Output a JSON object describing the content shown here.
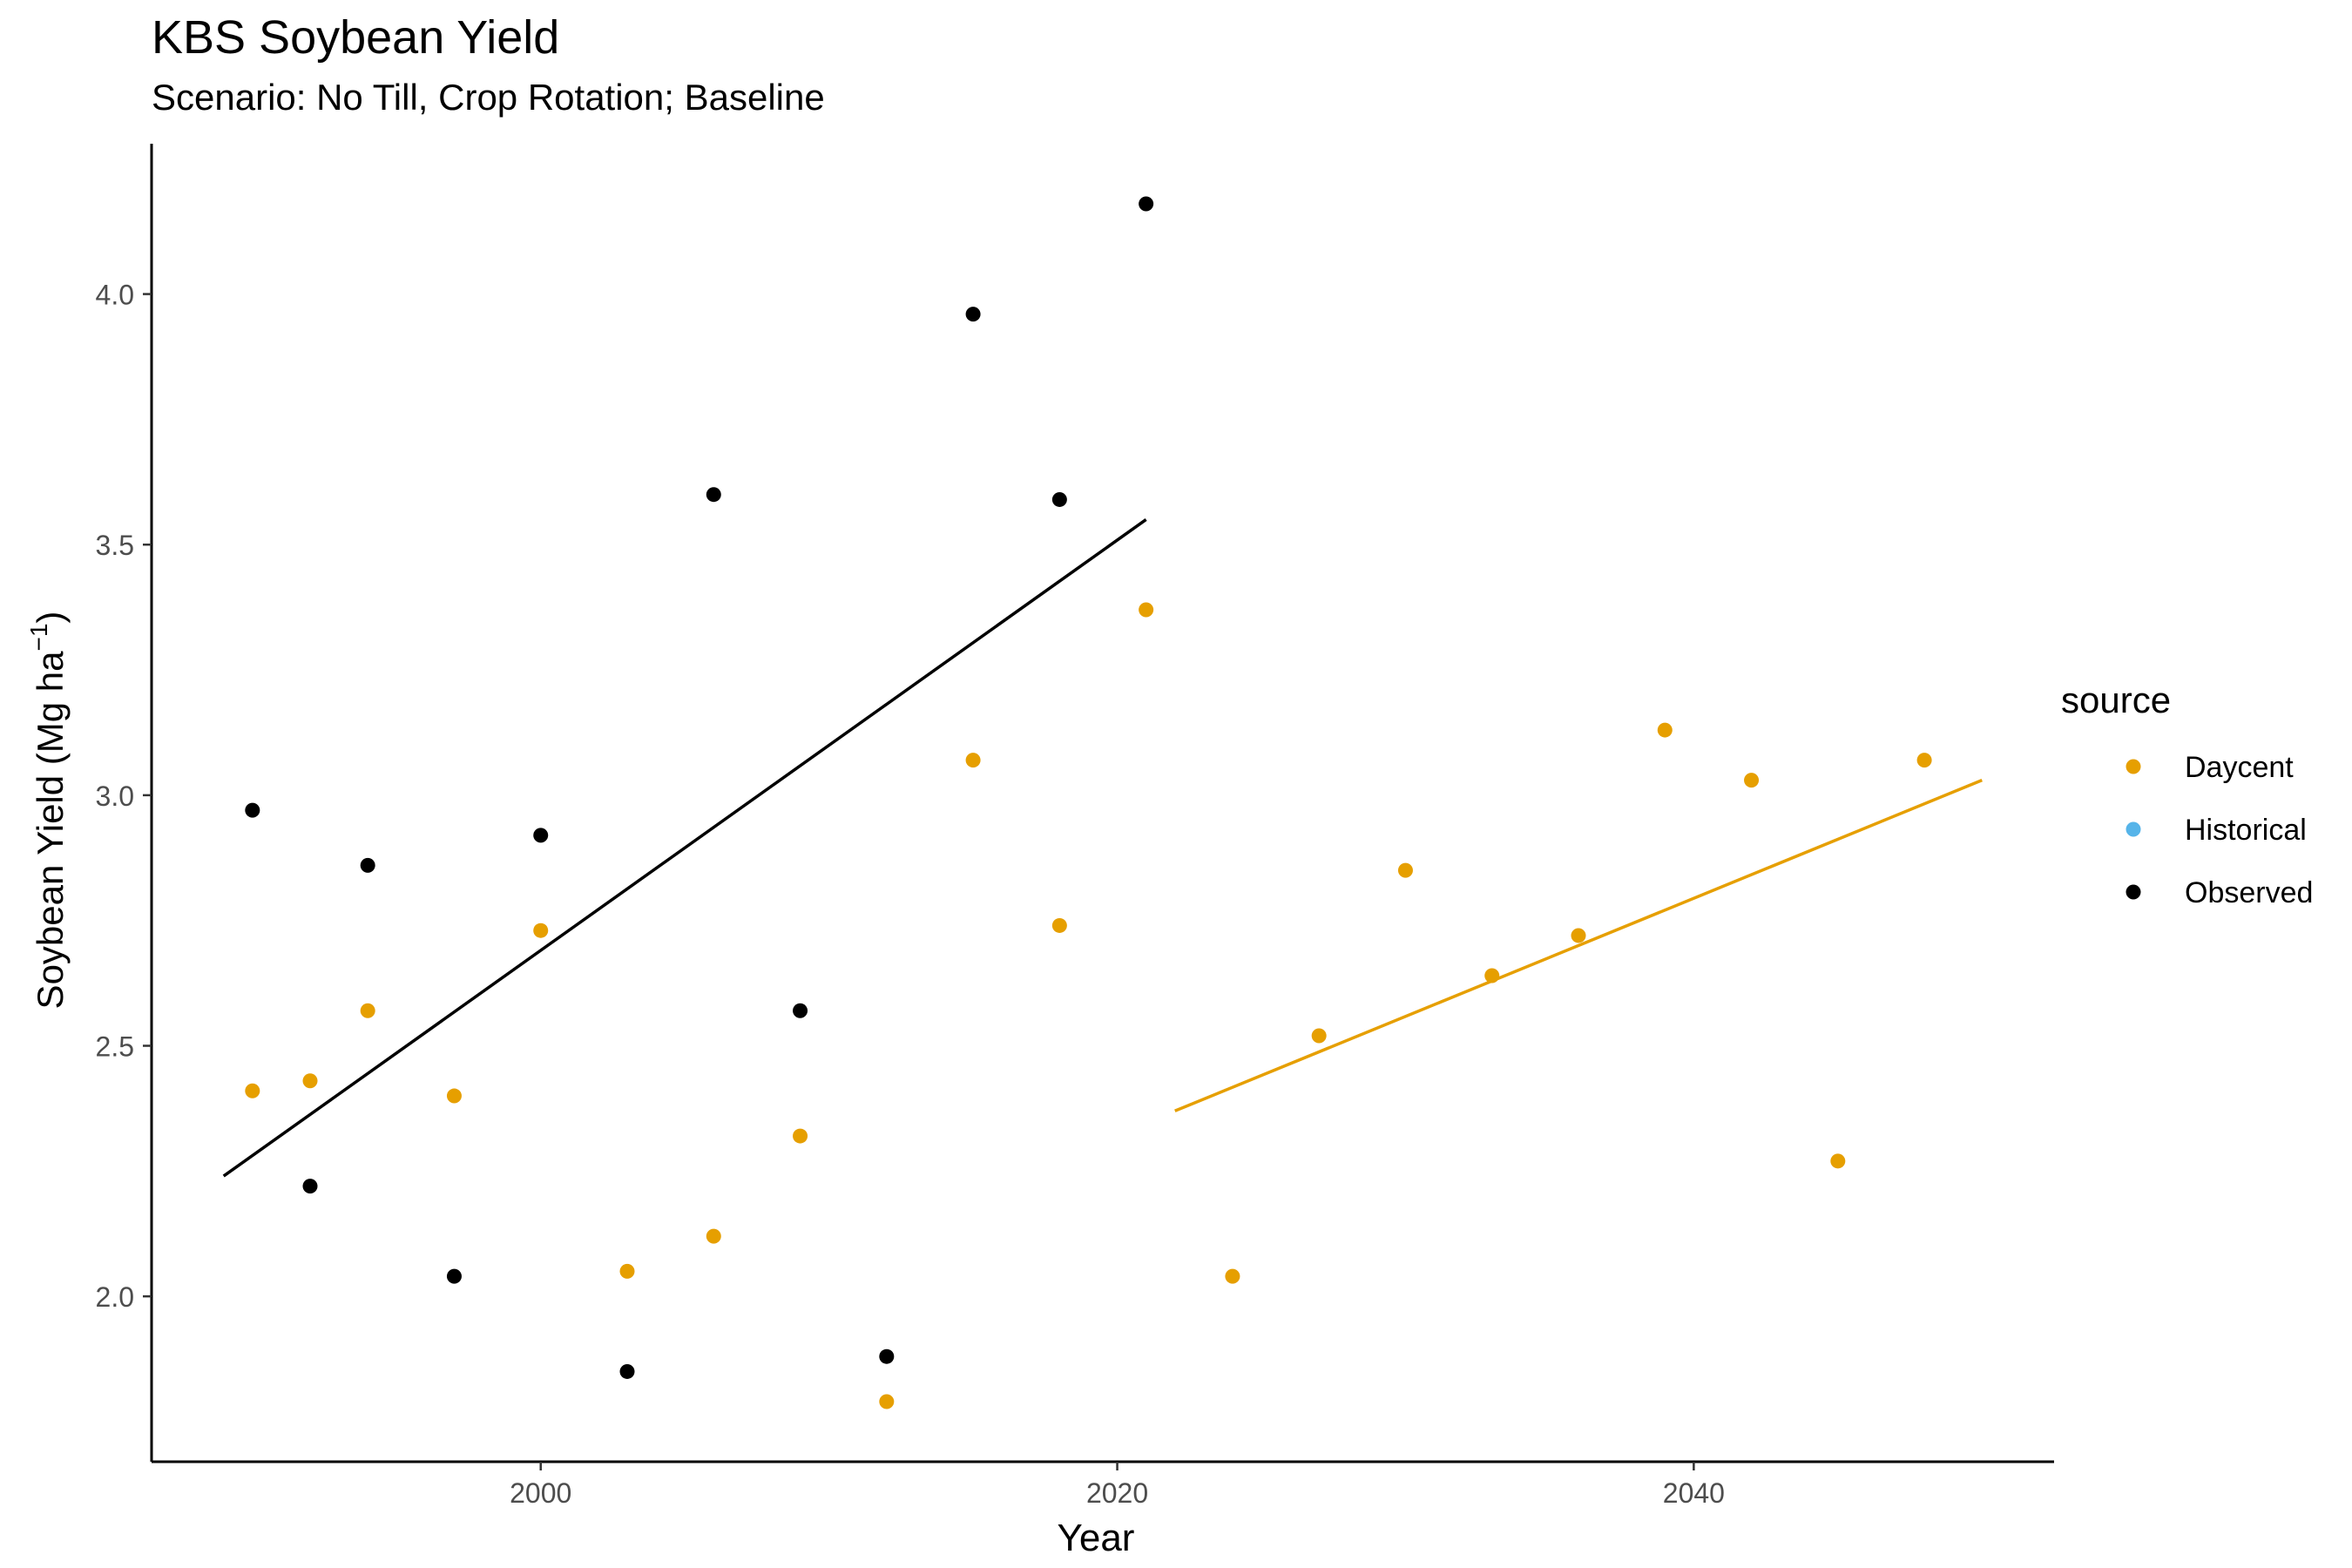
{
  "chart_data": {
    "type": "scatter",
    "title": "KBS Soybean Yield",
    "subtitle": "Scenario: No Till, Crop Rotation; Baseline",
    "xlabel": "Year",
    "ylabel_main": "Soybean Yield (Mg ha",
    "ylabel_sup": "−1",
    "ylabel_close": ")",
    "xlim": [
      1986.5,
      2052.5
    ],
    "ylim": [
      1.67,
      4.3
    ],
    "x_ticks": [
      2000,
      2020,
      2040
    ],
    "x_tick_labels": [
      "2000",
      "2020",
      "2040"
    ],
    "y_ticks": [
      2.0,
      2.5,
      3.0,
      3.5,
      4.0
    ],
    "y_tick_labels": [
      "2.0",
      "2.5",
      "3.0",
      "3.5",
      "4.0"
    ],
    "grid": false,
    "legend": {
      "title": "source",
      "position": "right",
      "entries": [
        {
          "name": "Daycent",
          "color": "#E69F00"
        },
        {
          "name": "Historical",
          "color": "#56B4E9"
        },
        {
          "name": "Observed",
          "color": "#000000"
        }
      ]
    },
    "series": [
      {
        "name": "Observed",
        "color": "#000000",
        "points": [
          [
            1990,
            2.97
          ],
          [
            1992,
            2.22
          ],
          [
            1994,
            2.86
          ],
          [
            1997,
            2.04
          ],
          [
            2000,
            2.92
          ],
          [
            2003,
            1.85
          ],
          [
            2006,
            3.6
          ],
          [
            2009,
            2.57
          ],
          [
            2012,
            1.88
          ],
          [
            2015,
            3.96
          ],
          [
            2018,
            3.59
          ],
          [
            2021,
            4.18
          ]
        ],
        "trend": {
          "x": [
            1989,
            2021
          ],
          "y": [
            2.24,
            3.55
          ]
        }
      },
      {
        "name": "Daycent",
        "color": "#E69F00",
        "points": [
          [
            1990,
            2.41
          ],
          [
            1992,
            2.43
          ],
          [
            1994,
            2.57
          ],
          [
            1997,
            2.4
          ],
          [
            2000,
            2.73
          ],
          [
            2003,
            2.05
          ],
          [
            2006,
            2.12
          ],
          [
            2009,
            2.32
          ],
          [
            2012,
            1.79
          ],
          [
            2015,
            3.07
          ],
          [
            2018,
            2.74
          ],
          [
            2021,
            3.37
          ],
          [
            2024,
            2.04
          ],
          [
            2027,
            2.52
          ],
          [
            2030,
            2.85
          ],
          [
            2033,
            2.64
          ],
          [
            2036,
            2.72
          ],
          [
            2039,
            3.13
          ],
          [
            2042,
            3.03
          ],
          [
            2045,
            2.27
          ],
          [
            2048,
            3.07
          ]
        ],
        "trend": {
          "x": [
            2022,
            2050
          ],
          "y": [
            2.37,
            3.03
          ]
        }
      },
      {
        "name": "Historical",
        "color": "#56B4E9",
        "points": []
      }
    ]
  }
}
